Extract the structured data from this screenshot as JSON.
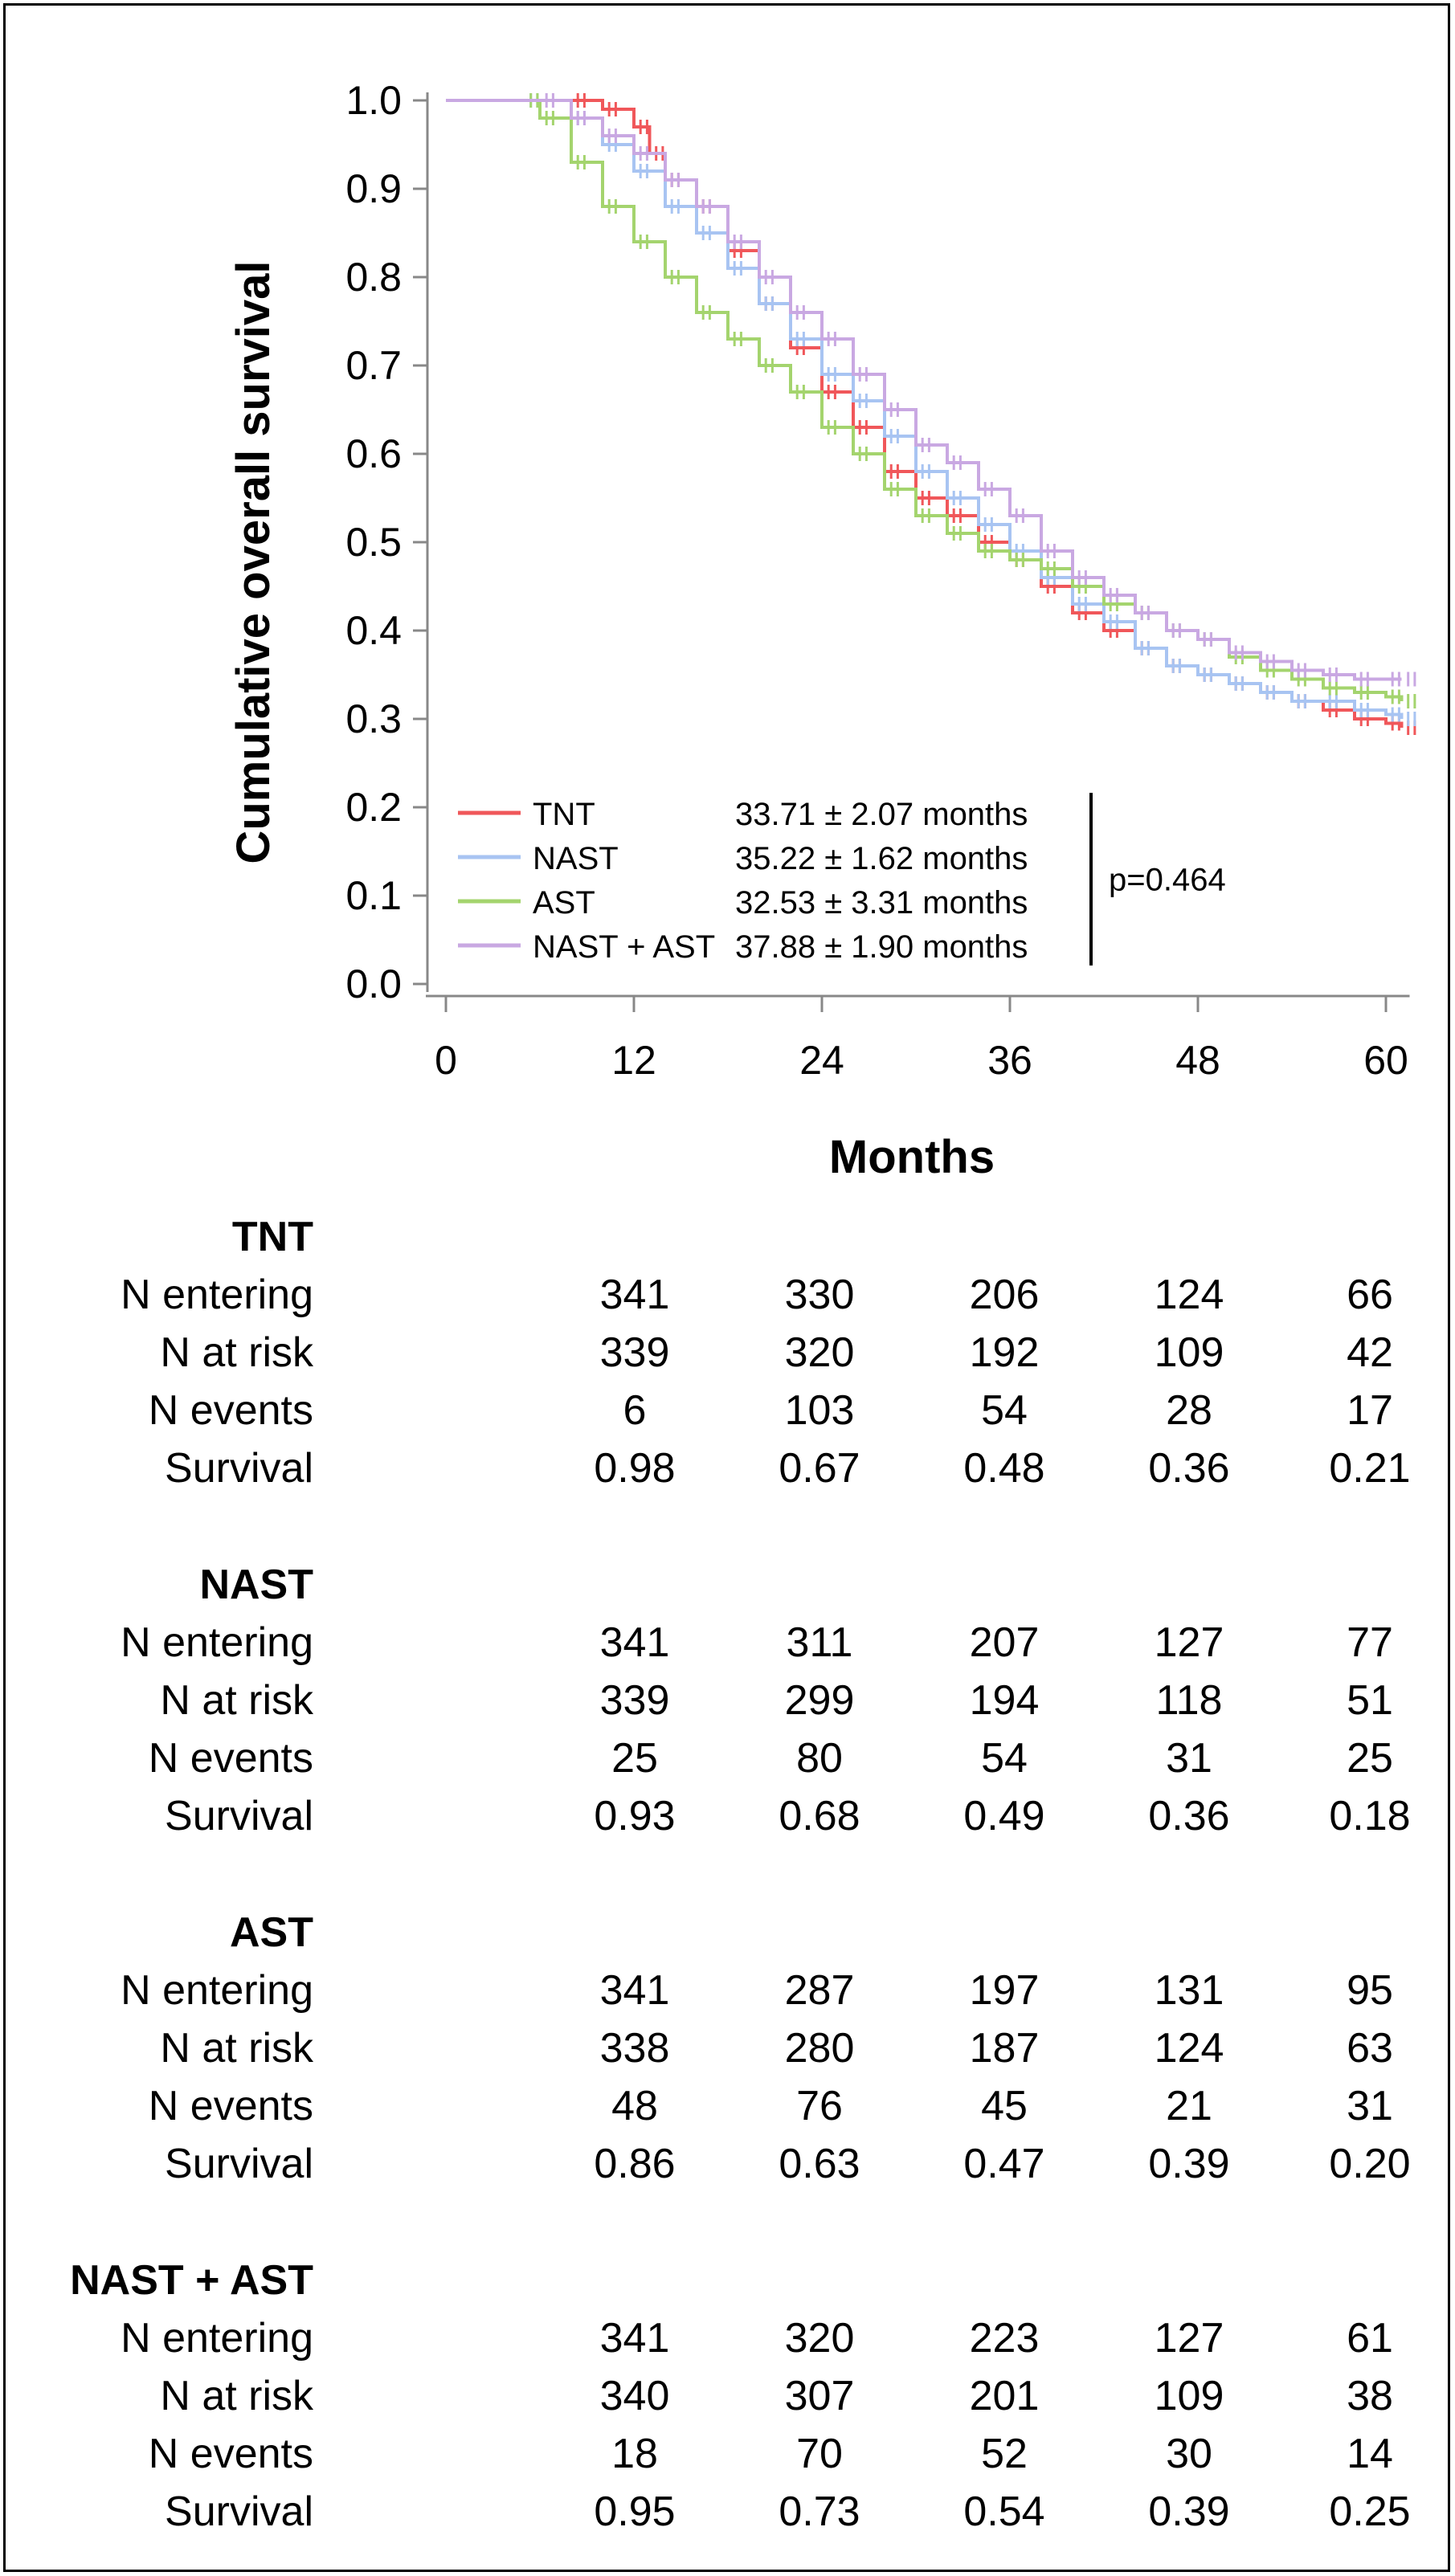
{
  "chart_data": {
    "type": "line",
    "title": "",
    "ylabel": "Cumulative overall survival",
    "xlabel": "Months",
    "xlim": [
      0,
      61
    ],
    "ylim": [
      0,
      1.0
    ],
    "xticks": [
      "0",
      "12",
      "24",
      "36",
      "48",
      "60"
    ],
    "xtick_values": [
      0,
      12,
      24,
      36,
      48,
      60
    ],
    "yticks": [
      "0.0",
      "0.1",
      "0.2",
      "0.3",
      "0.4",
      "0.5",
      "0.6",
      "0.7",
      "0.8",
      "0.9",
      "1.0"
    ],
    "ytick_values": [
      0,
      0.1,
      0.2,
      0.3,
      0.4,
      0.5,
      0.6,
      0.7,
      0.8,
      0.9,
      1.0
    ],
    "grid": false,
    "legend_placement": "bottom-left inside",
    "p_value": "p=0.464",
    "series": [
      {
        "name": "TNT",
        "summary": "33.71 ± 2.07 months",
        "color": "#f0575a",
        "x": [
          0,
          8,
          10,
          12,
          13,
          14,
          16,
          18,
          20,
          22,
          24,
          26,
          28,
          30,
          32,
          34,
          36,
          38,
          40,
          42,
          44,
          46,
          48,
          50,
          52,
          54,
          56,
          58,
          60,
          61
        ],
        "y": [
          1.0,
          1.0,
          0.99,
          0.97,
          0.94,
          0.91,
          0.88,
          0.83,
          0.77,
          0.72,
          0.67,
          0.63,
          0.58,
          0.55,
          0.53,
          0.5,
          0.48,
          0.45,
          0.42,
          0.4,
          0.38,
          0.36,
          0.35,
          0.34,
          0.33,
          0.32,
          0.31,
          0.3,
          0.295,
          0.29
        ]
      },
      {
        "name": "NAST",
        "summary": "35.22 ± 1.62 months",
        "color": "#a8c4f2",
        "x": [
          0,
          5,
          8,
          10,
          12,
          14,
          16,
          18,
          20,
          22,
          24,
          26,
          28,
          30,
          32,
          34,
          36,
          38,
          40,
          42,
          44,
          46,
          48,
          50,
          52,
          54,
          56,
          58,
          60,
          61
        ],
        "y": [
          1.0,
          1.0,
          0.98,
          0.95,
          0.92,
          0.88,
          0.85,
          0.81,
          0.77,
          0.73,
          0.69,
          0.66,
          0.62,
          0.58,
          0.55,
          0.52,
          0.49,
          0.46,
          0.43,
          0.41,
          0.38,
          0.36,
          0.35,
          0.34,
          0.33,
          0.32,
          0.32,
          0.31,
          0.305,
          0.3
        ]
      },
      {
        "name": "AST",
        "summary": "32.53 ± 3.31 months",
        "color": "#a4d46e",
        "x": [
          0,
          5,
          6,
          8,
          10,
          12,
          14,
          16,
          18,
          20,
          22,
          24,
          26,
          28,
          30,
          32,
          34,
          36,
          38,
          40,
          42,
          44,
          46,
          48,
          50,
          52,
          54,
          56,
          58,
          60,
          61
        ],
        "y": [
          1.0,
          1.0,
          0.98,
          0.93,
          0.88,
          0.84,
          0.8,
          0.76,
          0.73,
          0.7,
          0.67,
          0.63,
          0.6,
          0.56,
          0.53,
          0.51,
          0.49,
          0.48,
          0.47,
          0.45,
          0.43,
          0.42,
          0.4,
          0.39,
          0.37,
          0.355,
          0.345,
          0.335,
          0.33,
          0.325,
          0.32
        ]
      },
      {
        "name": "NAST + AST",
        "summary": "37.88 ± 1.90 months",
        "color": "#c9a8e2",
        "x": [
          0,
          6,
          8,
          10,
          12,
          14,
          16,
          18,
          20,
          22,
          24,
          26,
          28,
          30,
          32,
          34,
          36,
          38,
          40,
          42,
          44,
          46,
          48,
          50,
          52,
          54,
          56,
          58,
          60,
          61
        ],
        "y": [
          1.0,
          1.0,
          0.98,
          0.96,
          0.94,
          0.91,
          0.88,
          0.84,
          0.8,
          0.76,
          0.73,
          0.69,
          0.65,
          0.61,
          0.59,
          0.56,
          0.53,
          0.49,
          0.46,
          0.44,
          0.42,
          0.4,
          0.39,
          0.375,
          0.365,
          0.355,
          0.35,
          0.345,
          0.345,
          0.345
        ]
      }
    ]
  },
  "risk_table": {
    "row_labels": [
      "N entering",
      "N at risk",
      "N events",
      "Survival"
    ],
    "groups": [
      {
        "name": "TNT",
        "rows": [
          [
            "341",
            "330",
            "206",
            "124",
            "66"
          ],
          [
            "339",
            "320",
            "192",
            "109",
            "42"
          ],
          [
            "6",
            "103",
            "54",
            "28",
            "17"
          ],
          [
            "0.98",
            "0.67",
            "0.48",
            "0.36",
            "0.21"
          ]
        ]
      },
      {
        "name": "NAST",
        "rows": [
          [
            "341",
            "311",
            "207",
            "127",
            "77"
          ],
          [
            "339",
            "299",
            "194",
            "118",
            "51"
          ],
          [
            "25",
            "80",
            "54",
            "31",
            "25"
          ],
          [
            "0.93",
            "0.68",
            "0.49",
            "0.36",
            "0.18"
          ]
        ]
      },
      {
        "name": "AST",
        "rows": [
          [
            "341",
            "287",
            "197",
            "131",
            "95"
          ],
          [
            "338",
            "280",
            "187",
            "124",
            "63"
          ],
          [
            "48",
            "76",
            "45",
            "21",
            "31"
          ],
          [
            "0.86",
            "0.63",
            "0.47",
            "0.39",
            "0.20"
          ]
        ]
      },
      {
        "name": "NAST + AST",
        "rows": [
          [
            "341",
            "320",
            "223",
            "127",
            "61"
          ],
          [
            "340",
            "307",
            "201",
            "109",
            "38"
          ],
          [
            "18",
            "70",
            "52",
            "30",
            "14"
          ],
          [
            "0.95",
            "0.73",
            "0.54",
            "0.39",
            "0.25"
          ]
        ]
      }
    ]
  }
}
